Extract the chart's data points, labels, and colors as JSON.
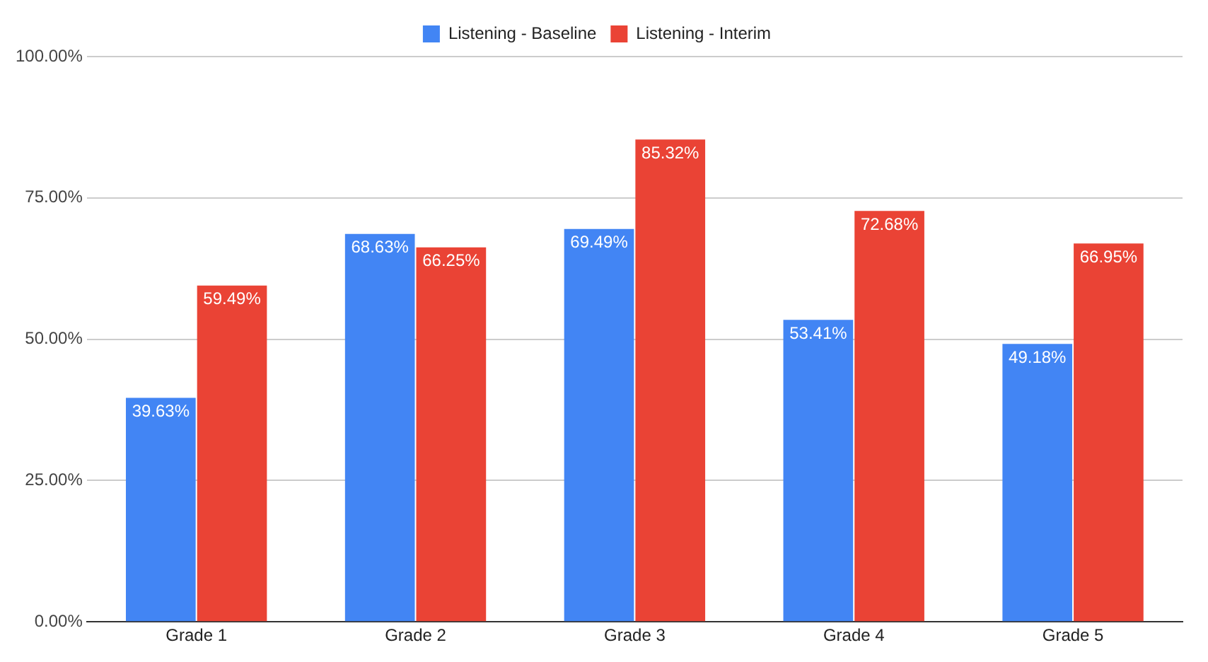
{
  "chart_data": {
    "type": "bar",
    "categories": [
      "Grade 1",
      "Grade 2",
      "Grade 3",
      "Grade 4",
      "Grade 5"
    ],
    "series": [
      {
        "name": "Listening - Baseline",
        "color": "#4285f4",
        "values": [
          39.63,
          68.63,
          69.49,
          53.41,
          49.18
        ],
        "value_labels": [
          "39.63%",
          "68.63%",
          "69.49%",
          "53.41%",
          "49.18%"
        ]
      },
      {
        "name": "Listening - Interim",
        "color": "#ea4335",
        "values": [
          59.49,
          66.25,
          85.32,
          72.68,
          66.95
        ],
        "value_labels": [
          "59.49%",
          "66.25%",
          "85.32%",
          "72.68%",
          "66.95%"
        ]
      }
    ],
    "ylim": [
      0,
      100
    ],
    "yticks": [
      {
        "value": 0,
        "label": "0.00%"
      },
      {
        "value": 25,
        "label": "25.00%"
      },
      {
        "value": 50,
        "label": "50.00%"
      },
      {
        "value": 75,
        "label": "75.00%"
      },
      {
        "value": 100,
        "label": "100.00%"
      }
    ],
    "grid": "y",
    "legend": "top"
  }
}
